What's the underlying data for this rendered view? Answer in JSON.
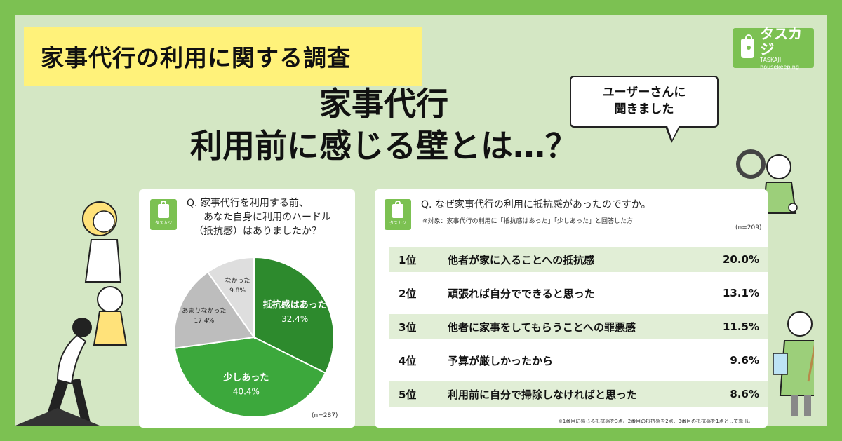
{
  "header": {
    "badge": "家事代行の利用に関する調査"
  },
  "logo": {
    "name": "タスカジ",
    "sub": "TASKAJI housekeeping"
  },
  "title": {
    "line1": "家事代行",
    "line2": "利用前に感じる壁とは…？"
  },
  "bubble": {
    "line1": "ユーザーさんに",
    "line2": "聞きました"
  },
  "panel_logo_label": "タスカジ",
  "colors": {
    "frame": "#7cc152",
    "bg": "#d4e7c4",
    "badge": "#fff27a",
    "dark_green": "#2d8a2d",
    "green": "#3ca83c",
    "grey": "#bdbdbd",
    "light_grey": "#dedede"
  },
  "chart_data": [
    {
      "type": "pie",
      "title": "Q. 家事代行を利用する前、あなた自身に利用のハードル（抵抗感）はありましたか？",
      "title_lines": [
        "Q. 家事代行を利用する前、",
        "あなた自身に利用のハードル",
        "（抵抗感）はありましたか？"
      ],
      "slices": [
        {
          "label": "抵抗感はあった",
          "value": 32.4,
          "display": "32.4%",
          "color": "#2d8a2d"
        },
        {
          "label": "少しあった",
          "value": 40.4,
          "display": "40.4%",
          "color": "#3ca83c"
        },
        {
          "label": "あまりなかった",
          "value": 17.4,
          "display": "17.4%",
          "color": "#bdbdbd"
        },
        {
          "label": "なかった",
          "value": 9.8,
          "display": "9.8%",
          "color": "#dedede"
        }
      ],
      "n": "(n=287)"
    },
    {
      "type": "table",
      "title": "Q. なぜ家事代行の利用に抵抗感があったのですか。",
      "subtitle": "※対象：家事代行の利用に「抵抗感はあった」「少しあった」と回答した方",
      "n": "(n=209)",
      "rows": [
        {
          "rank": "1位",
          "reason": "他者が家に入ることへの抵抗感",
          "value": 20.0,
          "display": "20.0%"
        },
        {
          "rank": "2位",
          "reason": "頑張れば自分でできると思った",
          "value": 13.1,
          "display": "13.1%"
        },
        {
          "rank": "3位",
          "reason": "他者に家事をしてもらうことへの罪悪感",
          "value": 11.5,
          "display": "11.5%"
        },
        {
          "rank": "4位",
          "reason": "予算が厳しかったから",
          "value": 9.6,
          "display": "9.6%"
        },
        {
          "rank": "5位",
          "reason": "利用前に自分で掃除しなければと思った",
          "value": 8.6,
          "display": "8.6%"
        }
      ],
      "footnote": "※1番目に感じる抵抗感を3点、2番目の抵抗感を2点、3番目の抵抗感を1点として算出。"
    }
  ]
}
